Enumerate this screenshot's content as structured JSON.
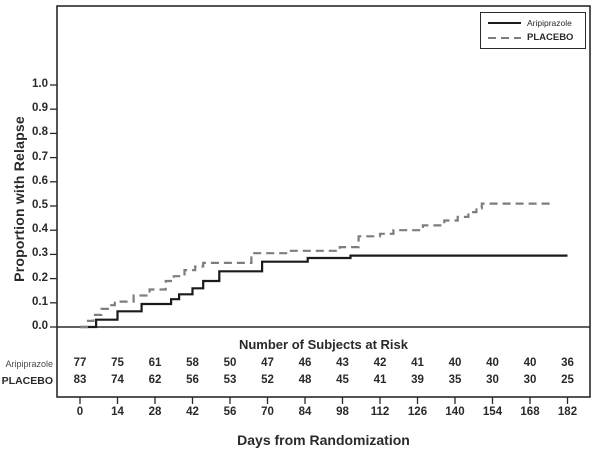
{
  "figure": {
    "y_axis_title": "Proportion with Relapse",
    "x_axis_title": "Days from Randomization"
  },
  "legend": {
    "items": [
      {
        "label": "Aripiprazole",
        "line": "solid",
        "color": "#1a1a1a"
      },
      {
        "label": "PLACEBO",
        "line": "dashed",
        "color": "#7d7d7d"
      }
    ]
  },
  "chart_data": {
    "type": "line",
    "subtype": "kaplan-meier-step",
    "title": "",
    "xlabel": "Days from Randomization",
    "ylabel": "Proportion with Relapse",
    "xlim": [
      0,
      182
    ],
    "ylim": [
      0,
      1.0
    ],
    "xticks": [
      0,
      14,
      28,
      42,
      56,
      70,
      84,
      98,
      112,
      126,
      140,
      154,
      168,
      182
    ],
    "yticks": [
      0.0,
      0.1,
      0.2,
      0.3,
      0.4,
      0.5,
      0.6,
      0.7,
      0.8,
      0.9,
      1.0
    ],
    "grid": false,
    "legend_position": "top-right",
    "series": [
      {
        "name": "Aripiprazole",
        "style": "solid",
        "color": "#1a1a1a",
        "end_x": 182,
        "steps": [
          [
            0,
            0
          ],
          [
            6,
            0.03
          ],
          [
            14,
            0.065
          ],
          [
            23,
            0.095
          ],
          [
            34,
            0.115
          ],
          [
            37,
            0.135
          ],
          [
            42,
            0.16
          ],
          [
            46,
            0.19
          ],
          [
            52,
            0.23
          ],
          [
            68,
            0.27
          ],
          [
            85,
            0.285
          ],
          [
            101,
            0.295
          ]
        ]
      },
      {
        "name": "PLACEBO",
        "style": "dashed",
        "color": "#7d7d7d",
        "end_x": 177,
        "steps": [
          [
            0,
            0
          ],
          [
            3,
            0.025
          ],
          [
            5,
            0.05
          ],
          [
            8,
            0.075
          ],
          [
            11,
            0.09
          ],
          [
            13,
            0.105
          ],
          [
            20,
            0.13
          ],
          [
            26,
            0.155
          ],
          [
            32,
            0.19
          ],
          [
            35,
            0.21
          ],
          [
            39,
            0.235
          ],
          [
            43,
            0.25
          ],
          [
            46,
            0.265
          ],
          [
            64,
            0.305
          ],
          [
            78,
            0.315
          ],
          [
            97,
            0.33
          ],
          [
            104,
            0.375
          ],
          [
            112,
            0.385
          ],
          [
            117,
            0.4
          ],
          [
            128,
            0.42
          ],
          [
            136,
            0.44
          ],
          [
            141,
            0.455
          ],
          [
            145,
            0.475
          ],
          [
            148,
            0.49
          ],
          [
            150,
            0.51
          ]
        ]
      }
    ],
    "at_risk": {
      "title": "Number of Subjects at Risk",
      "days": [
        0,
        14,
        28,
        42,
        56,
        70,
        84,
        98,
        112,
        126,
        140,
        154,
        168,
        182
      ],
      "rows": [
        {
          "label": "Aripiprazole",
          "bold": false,
          "counts": [
            77,
            75,
            61,
            58,
            50,
            47,
            46,
            43,
            42,
            41,
            40,
            40,
            40,
            36
          ]
        },
        {
          "label": "PLACEBO",
          "bold": true,
          "counts": [
            83,
            74,
            62,
            56,
            53,
            52,
            48,
            45,
            41,
            39,
            35,
            30,
            30,
            25
          ]
        }
      ]
    }
  }
}
